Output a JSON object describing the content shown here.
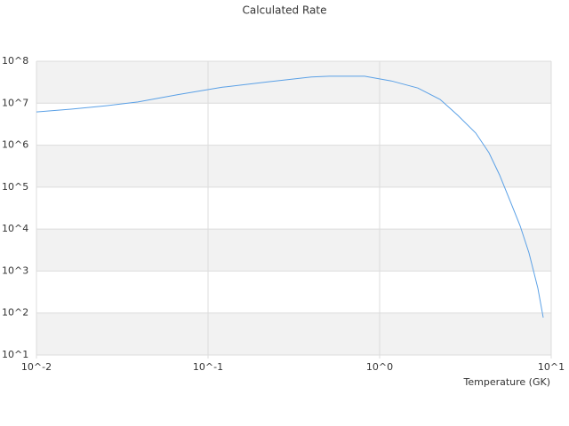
{
  "chart_data": {
    "type": "line",
    "title": "Calculated Rate",
    "x_label": "Temperature (GK)",
    "x": [
      0.01,
      0.0159,
      0.0256,
      0.039,
      0.0667,
      0.121,
      0.22,
      0.4,
      0.507,
      0.817,
      1.17,
      1.67,
      2.25,
      2.86,
      3.63,
      4.34,
      5.0,
      5.85,
      6.59,
      7.42,
      8.36,
      8.98
    ],
    "values": [
      6200000,
      7200000,
      8700000,
      10700000,
      16000000,
      24000000,
      32000000,
      42000000,
      44000000,
      44000000,
      34000000,
      23000000,
      12300000,
      5100000,
      1950000,
      660000,
      195000,
      40000,
      12000,
      2700,
      390,
      78
    ],
    "color": "#5aa0e6",
    "x_log": true,
    "y_log": true,
    "xlim": [
      0.01,
      10
    ],
    "ylim": [
      10,
      100000000
    ],
    "xticks": [
      {
        "value": 0.01,
        "label": "10^-2"
      },
      {
        "value": 0.1,
        "label": "10^-1"
      },
      {
        "value": 1,
        "label": "10^0"
      },
      {
        "value": 10,
        "label": "10^1"
      }
    ],
    "yticks": [
      {
        "value": 10,
        "label": "10^1"
      },
      {
        "value": 100,
        "label": "10^2"
      },
      {
        "value": 1000,
        "label": "10^3"
      },
      {
        "value": 10000,
        "label": "10^4"
      },
      {
        "value": 100000,
        "label": "10^5"
      },
      {
        "value": 1000000,
        "label": "10^6"
      },
      {
        "value": 10000000,
        "label": "10^7"
      },
      {
        "value": 100000000,
        "label": "10^8"
      }
    ],
    "grid": true
  }
}
